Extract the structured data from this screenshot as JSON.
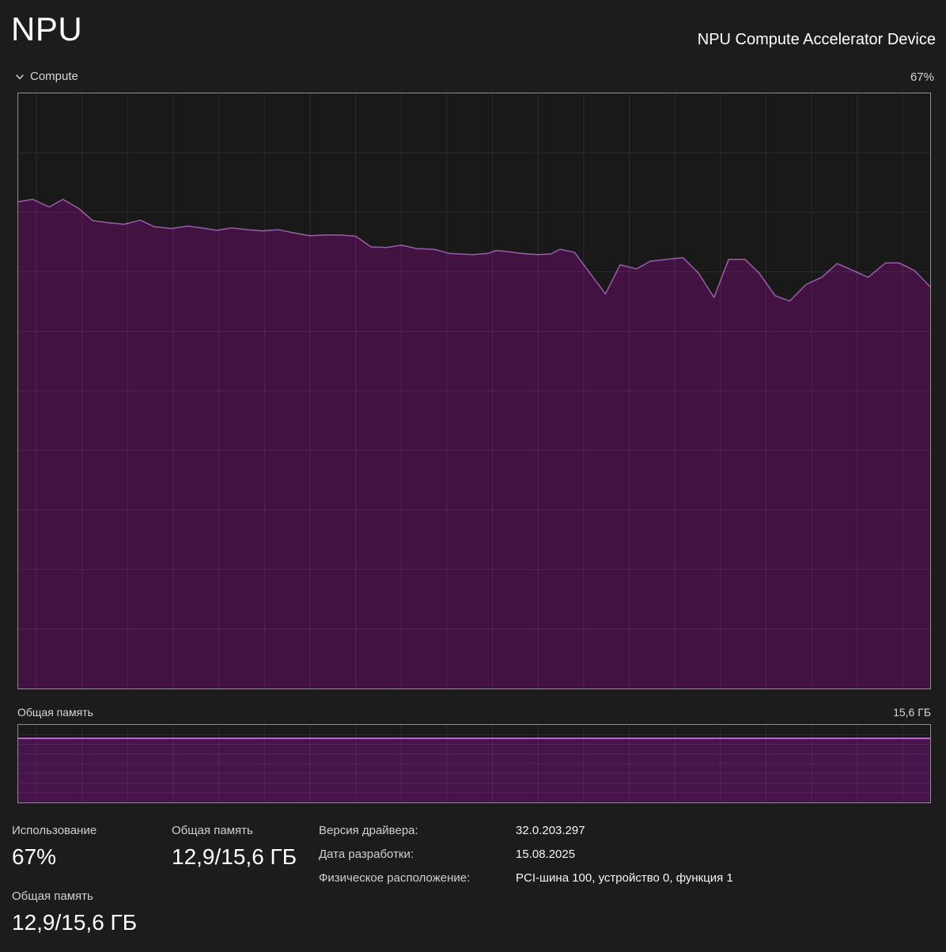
{
  "header": {
    "title": "NPU",
    "device_name": "NPU Compute Accelerator Device"
  },
  "compute_section": {
    "label": "Compute",
    "current_value": "67%"
  },
  "memory_section": {
    "label": "Общая память",
    "max_label": "15,6 ГБ"
  },
  "stats": {
    "usage": {
      "label": "Использование",
      "value": "67%"
    },
    "shared_memory_top": {
      "label": "Общая память",
      "value": "12,9/15,6 ГБ"
    },
    "shared_memory_bottom": {
      "label": "Общая память",
      "value": "12,9/15,6 ГБ"
    },
    "details": [
      {
        "label": "Версия драйвера:",
        "value": "32.0.203.297"
      },
      {
        "label": "Дата разработки:",
        "value": "15.08.2025"
      },
      {
        "label": "Физическое расположение:",
        "value": "PCI-шина 100, устройство 0, функция 1"
      }
    ]
  },
  "icons": {
    "chevron_down": "chevron-down"
  },
  "colors": {
    "background": "#1c1c1c",
    "chart_background": "#191919",
    "chart_border": "#8d8d8d",
    "grid_line": "rgba(255,255,255,0.08)",
    "compute_fill": "#421341",
    "compute_line": "#a158b2",
    "memory_fill": "#46134a",
    "memory_line": "#c75bd4",
    "title_text": "#ffffff",
    "label_text": "#cfcfcf"
  },
  "chart_data": [
    {
      "type": "area",
      "title": "Compute utilization (rolling 60 s, no x labels)",
      "unit": "%",
      "ylim": [
        0,
        100
      ],
      "current": 67,
      "grid": {
        "columns": 20,
        "rows": 10,
        "grid_on": true
      },
      "legend": "none",
      "series": [
        {
          "name": "NPU Compute",
          "points_x_pct_vs_value_pct": [
            [
              0,
              81.8
            ],
            [
              1.6,
              82.2
            ],
            [
              3.4,
              80.9
            ],
            [
              4.9,
              82.2
            ],
            [
              6.6,
              80.7
            ],
            [
              8.2,
              78.6
            ],
            [
              9.7,
              78.3
            ],
            [
              11.6,
              78.0
            ],
            [
              13.4,
              78.7
            ],
            [
              14.9,
              77.6
            ],
            [
              16.8,
              77.3
            ],
            [
              18.6,
              77.7
            ],
            [
              20.1,
              77.4
            ],
            [
              21.8,
              77.0
            ],
            [
              23.4,
              77.4
            ],
            [
              25.1,
              77.1
            ],
            [
              26.8,
              76.9
            ],
            [
              28.5,
              77.1
            ],
            [
              30.1,
              76.6
            ],
            [
              31.9,
              76.1
            ],
            [
              33.7,
              76.2
            ],
            [
              35.3,
              76.2
            ],
            [
              37.0,
              76.0
            ],
            [
              38.7,
              74.2
            ],
            [
              40.4,
              74.1
            ],
            [
              42.0,
              74.5
            ],
            [
              43.8,
              73.9
            ],
            [
              45.6,
              73.8
            ],
            [
              47.3,
              73.1
            ],
            [
              49.8,
              72.9
            ],
            [
              51.5,
              73.1
            ],
            [
              52.4,
              73.6
            ],
            [
              53.2,
              73.5
            ],
            [
              55.2,
              73.1
            ],
            [
              57.0,
              72.9
            ],
            [
              58.4,
              73.0
            ],
            [
              59.4,
              73.8
            ],
            [
              61.0,
              73.3
            ],
            [
              64.4,
              66.3
            ],
            [
              66.0,
              71.2
            ],
            [
              67.8,
              70.5
            ],
            [
              69.3,
              71.8
            ],
            [
              71.1,
              72.1
            ],
            [
              72.9,
              72.4
            ],
            [
              74.6,
              69.8
            ],
            [
              76.3,
              65.7
            ],
            [
              77.9,
              72.1
            ],
            [
              79.7,
              72.1
            ],
            [
              81.2,
              69.9
            ],
            [
              83.0,
              66.0
            ],
            [
              84.6,
              65.1
            ],
            [
              86.4,
              67.9
            ],
            [
              88.1,
              69.1
            ],
            [
              89.8,
              71.4
            ],
            [
              91.3,
              70.4
            ],
            [
              93.2,
              69.1
            ],
            [
              95.1,
              71.5
            ],
            [
              96.6,
              71.5
            ],
            [
              98.3,
              70.2
            ],
            [
              100,
              67.5
            ]
          ]
        }
      ]
    },
    {
      "type": "area",
      "title": "Общая память (shared memory, rolling 60 s)",
      "unit": "ГБ",
      "ylim": [
        0,
        15.6
      ],
      "current": 12.9,
      "max": 15.6,
      "grid": {
        "columns": 20,
        "rows": 8,
        "grid_on": true
      },
      "legend": "none",
      "series": [
        {
          "name": "Общая память",
          "points_x_pct_vs_value": [
            [
              0,
              12.9
            ],
            [
              100,
              12.9
            ]
          ]
        }
      ]
    }
  ]
}
